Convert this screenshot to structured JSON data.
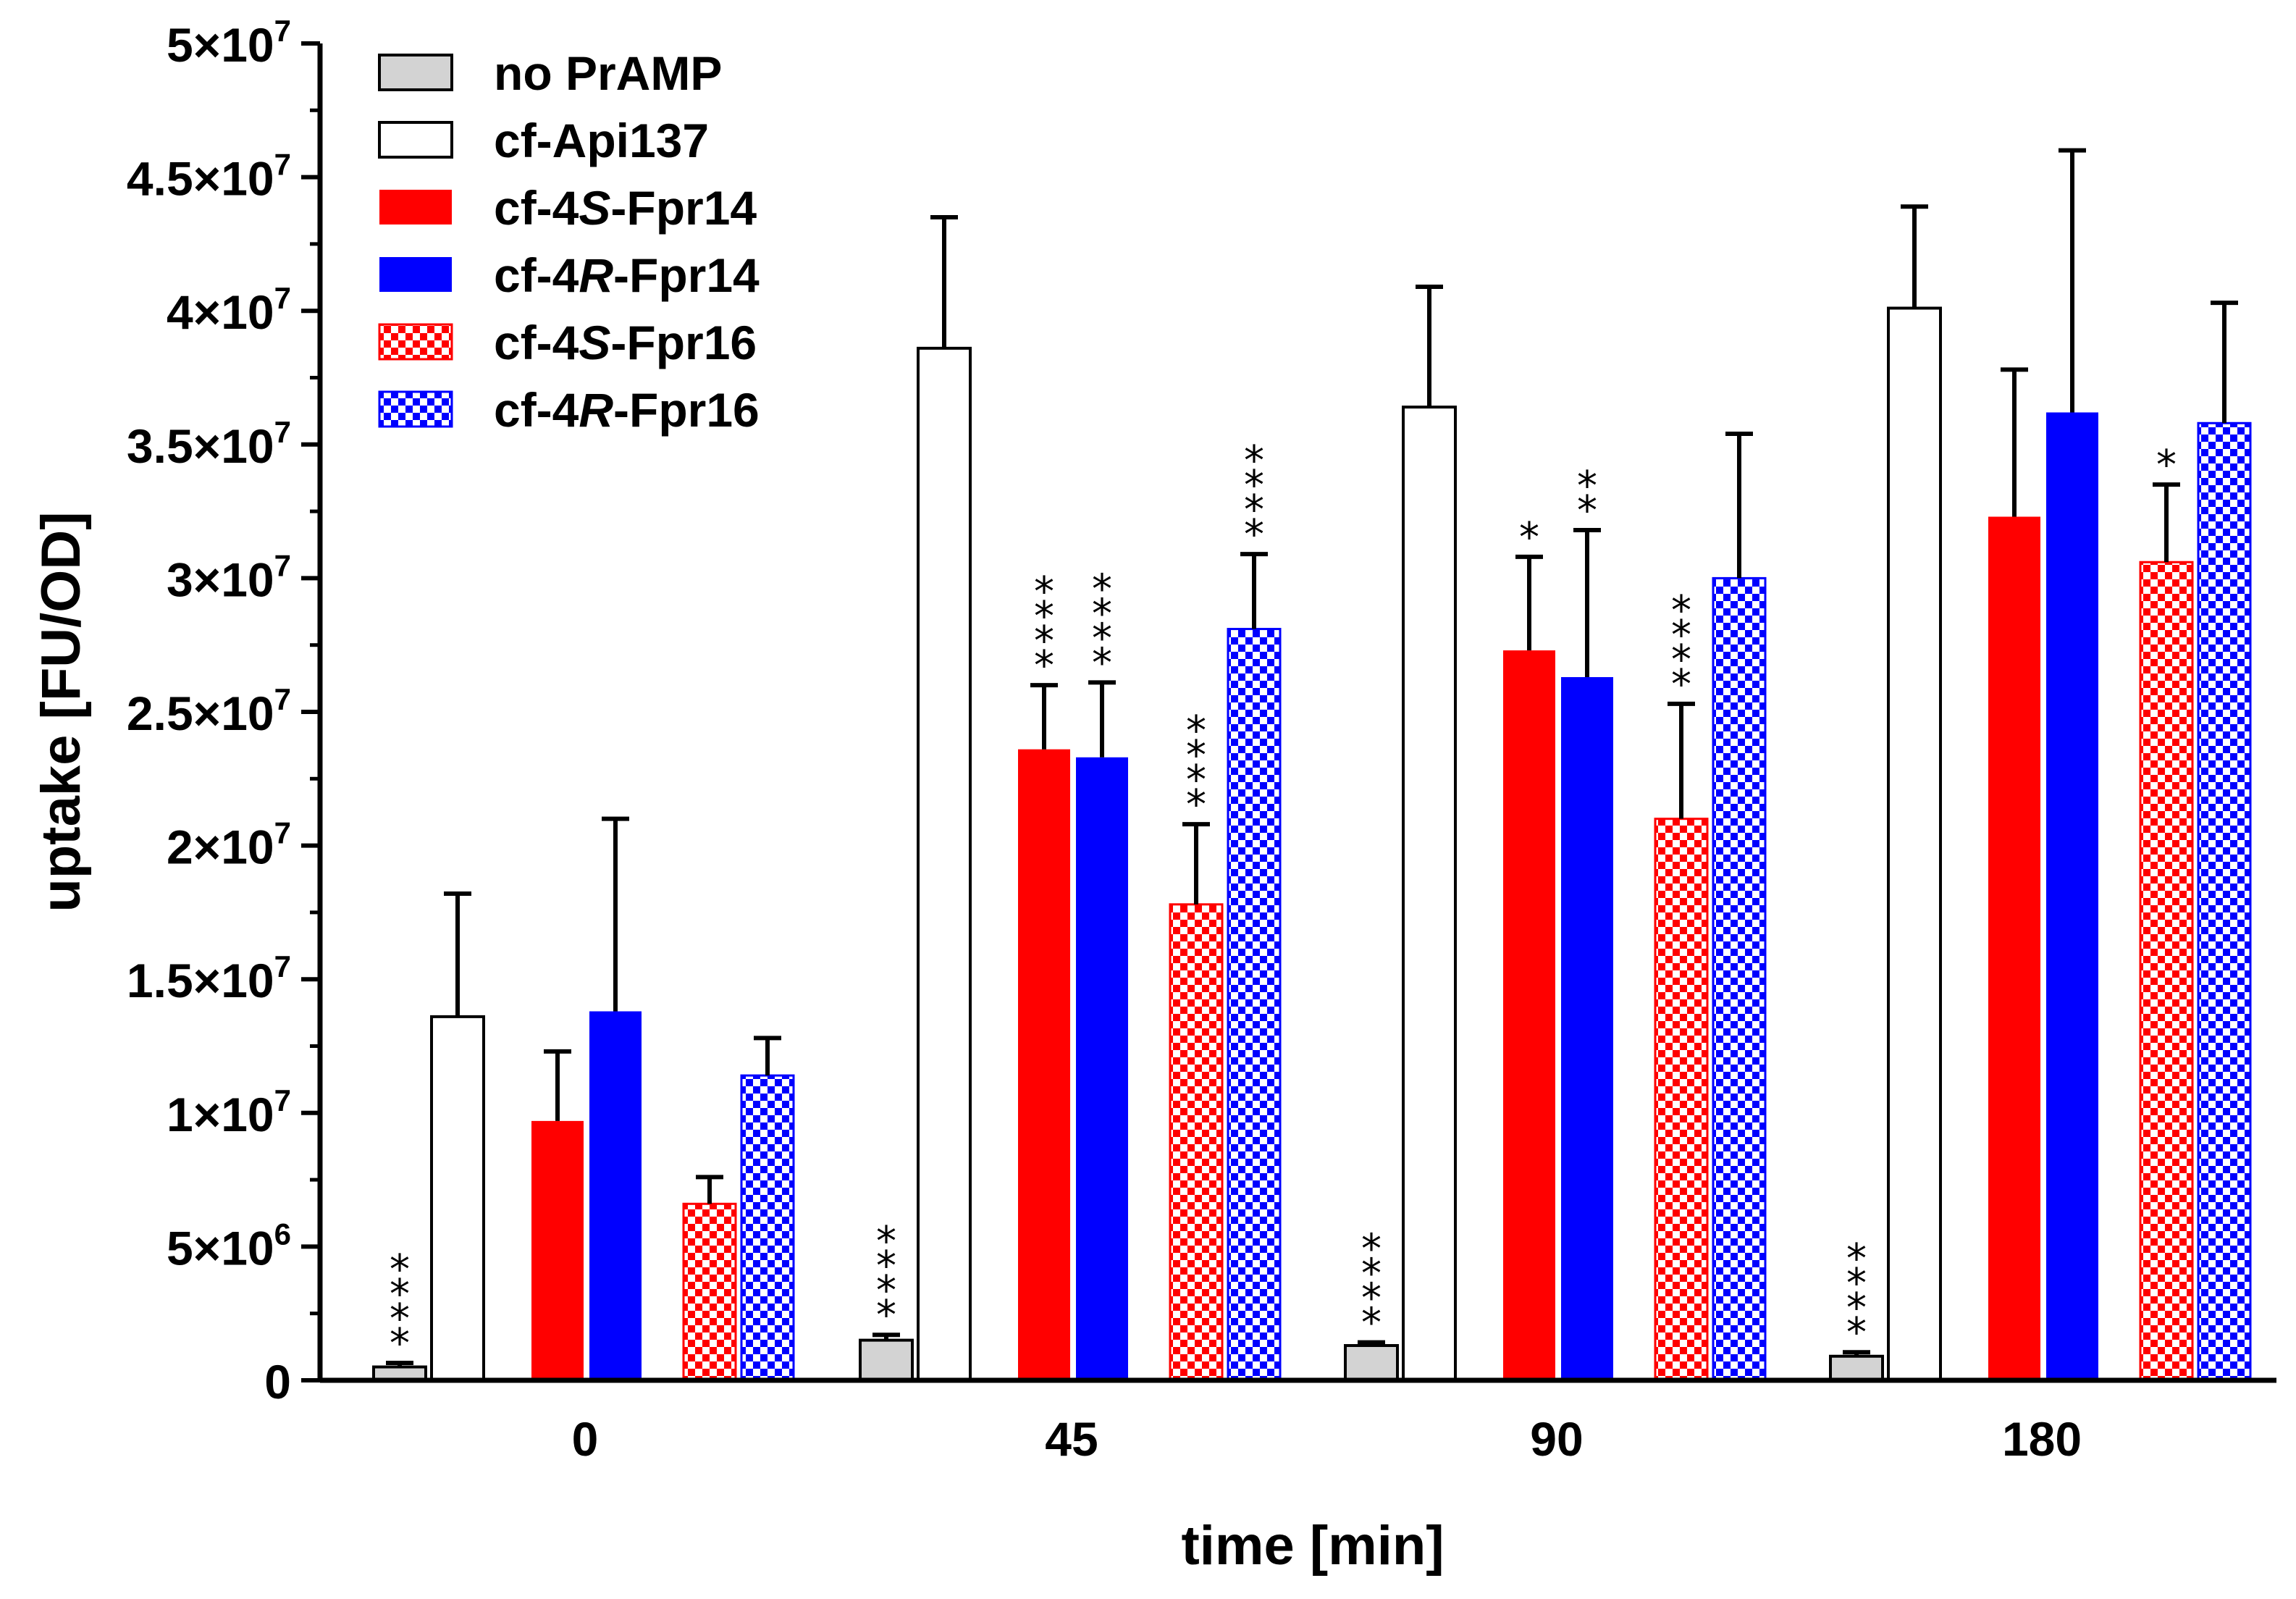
{
  "chart_data": {
    "type": "bar",
    "xlabel": "time [min]",
    "ylabel": "uptake [FU/OD]",
    "ylim": [
      0,
      50000000
    ],
    "y_ticks": [
      {
        "value": 0,
        "mantissa": "0",
        "exp": ""
      },
      {
        "value": 5000000,
        "mantissa": "5×10",
        "exp": "6"
      },
      {
        "value": 10000000,
        "mantissa": "1×10",
        "exp": "7"
      },
      {
        "value": 15000000,
        "mantissa": "1.5×10",
        "exp": "7"
      },
      {
        "value": 20000000,
        "mantissa": "2×10",
        "exp": "7"
      },
      {
        "value": 25000000,
        "mantissa": "2.5×10",
        "exp": "7"
      },
      {
        "value": 30000000,
        "mantissa": "3×10",
        "exp": "7"
      },
      {
        "value": 35000000,
        "mantissa": "3.5×10",
        "exp": "7"
      },
      {
        "value": 40000000,
        "mantissa": "4×10",
        "exp": "7"
      },
      {
        "value": 45000000,
        "mantissa": "4.5×10",
        "exp": "7"
      },
      {
        "value": 50000000,
        "mantissa": "5×10",
        "exp": "7"
      }
    ],
    "categories": [
      "0",
      "45",
      "90",
      "180"
    ],
    "legend_position": "top-left",
    "series": [
      {
        "name": "no PrAMP",
        "legend_parts": [
          {
            "text": "no PrAMP",
            "italic": false
          }
        ],
        "fill": "#d3d3d3",
        "pattern": "solid",
        "bordered": true,
        "values": [
          500000,
          1500000,
          1300000,
          900000
        ],
        "errors": [
          150000,
          200000,
          120000,
          150000
        ],
        "stars": [
          "****",
          "****",
          "****",
          "****"
        ]
      },
      {
        "name": "cf-Api137",
        "legend_parts": [
          {
            "text": "cf-Api137",
            "italic": false
          }
        ],
        "fill": "#ffffff",
        "pattern": "solid",
        "bordered": true,
        "values": [
          13600000,
          38600000,
          36400000,
          40100000
        ],
        "errors": [
          4600000,
          4900000,
          4500000,
          3800000
        ],
        "stars": [
          "",
          "",
          "",
          ""
        ]
      },
      {
        "name": "cf-4S-Fpr14",
        "legend_parts": [
          {
            "text": "cf-4",
            "italic": false
          },
          {
            "text": "S",
            "italic": true
          },
          {
            "text": "-Fpr14",
            "italic": false
          }
        ],
        "fill": "#ff0000",
        "pattern": "solid",
        "bordered": false,
        "values": [
          9700000,
          23600000,
          27300000,
          32300000
        ],
        "errors": [
          2600000,
          2400000,
          3500000,
          5500000
        ],
        "stars": [
          "",
          "****",
          "*",
          ""
        ]
      },
      {
        "name": "cf-4R-Fpr14",
        "legend_parts": [
          {
            "text": "cf-4",
            "italic": false
          },
          {
            "text": "R",
            "italic": true
          },
          {
            "text": "-Fpr14",
            "italic": false
          }
        ],
        "fill": "#0000ff",
        "pattern": "solid",
        "bordered": false,
        "values": [
          13800000,
          23300000,
          26300000,
          36200000
        ],
        "errors": [
          7200000,
          2800000,
          5500000,
          9800000
        ],
        "stars": [
          "",
          "****",
          "**",
          ""
        ]
      },
      {
        "name": "cf-4S-Fpr16",
        "legend_parts": [
          {
            "text": "cf-4",
            "italic": false
          },
          {
            "text": "S",
            "italic": true
          },
          {
            "text": "-Fpr16",
            "italic": false
          }
        ],
        "fill": "#ff0000",
        "pattern": "checker",
        "bordered": false,
        "values": [
          6600000,
          17800000,
          21000000,
          30600000
        ],
        "errors": [
          1000000,
          3000000,
          4300000,
          2900000
        ],
        "stars": [
          "",
          "****",
          "****",
          "*"
        ]
      },
      {
        "name": "cf-4R-Fpr16",
        "legend_parts": [
          {
            "text": "cf-4",
            "italic": false
          },
          {
            "text": "R",
            "italic": true
          },
          {
            "text": "-Fpr16",
            "italic": false
          }
        ],
        "fill": "#0000ff",
        "pattern": "checker",
        "bordered": false,
        "values": [
          11400000,
          28100000,
          30000000,
          35800000
        ],
        "errors": [
          1400000,
          2800000,
          5400000,
          4500000
        ],
        "stars": [
          "",
          "****",
          "",
          ""
        ]
      }
    ]
  }
}
